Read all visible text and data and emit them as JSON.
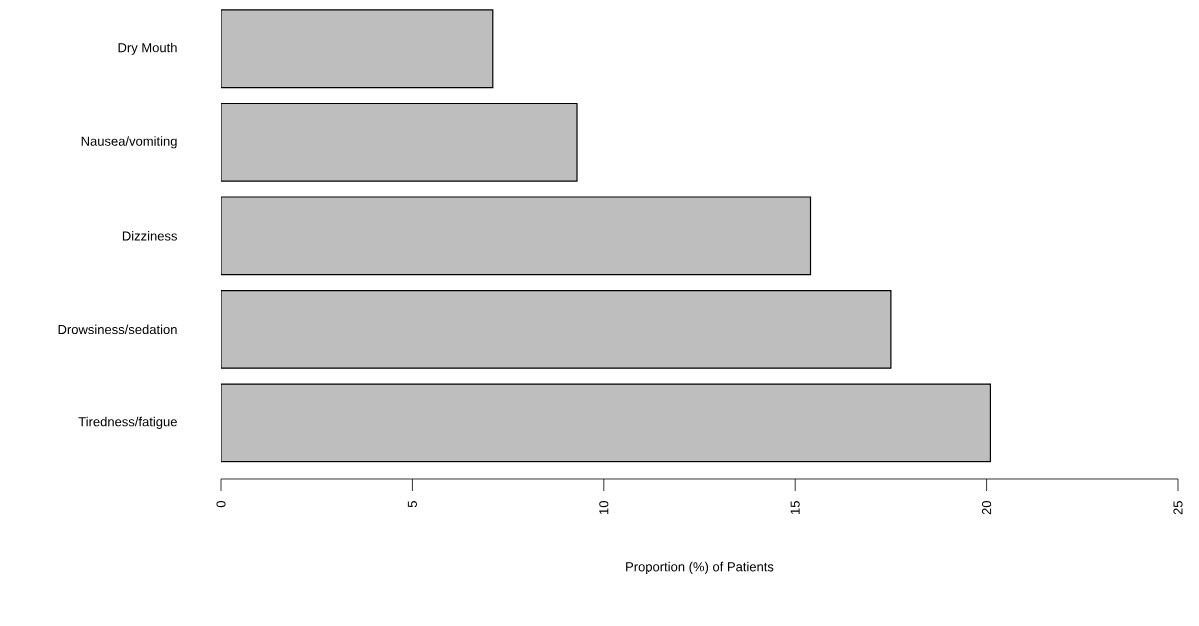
{
  "chart_data": {
    "type": "bar",
    "orientation": "horizontal",
    "xlabel": "Proportion (%) of Patients",
    "categories": [
      "Dry Mouth",
      "Nausea/vomiting",
      "Dizziness",
      "Drowsiness/sedation",
      "Tiredness/fatigue"
    ],
    "values": [
      7.1,
      9.3,
      15.4,
      17.5,
      20.1
    ],
    "color": "#bebebe",
    "xlim": [
      0,
      25
    ],
    "xticks": [
      0,
      5,
      10,
      15,
      20,
      25
    ],
    "grid": false
  }
}
